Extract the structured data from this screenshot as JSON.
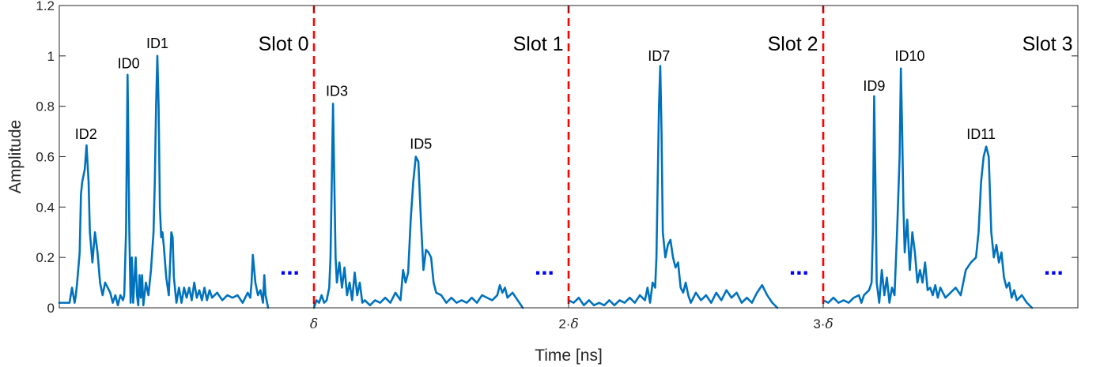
{
  "chart_data": {
    "type": "line",
    "title": "",
    "xlabel": "Time [ns]",
    "ylabel": "Amplitude",
    "xlim": [
      0,
      4
    ],
    "ylim": [
      0,
      1.2
    ],
    "y_ticks": [
      0,
      0.2,
      0.4,
      0.6,
      0.8,
      1,
      1.2
    ],
    "y_tick_labels": [
      "0",
      "0.2",
      "0.4",
      "0.6",
      "0.8",
      "1",
      "1.2"
    ],
    "x_ticks": [
      {
        "x": 1,
        "label": "δ",
        "prefix": ""
      },
      {
        "x": 2,
        "label": "δ",
        "prefix": "2·"
      },
      {
        "x": 3,
        "label": "δ",
        "prefix": "3·"
      }
    ],
    "grid": false,
    "line_color": "#0072bd",
    "slot_boundary_color": "#ff0000",
    "ellipsis_color": "#0000ff",
    "slot_boundaries": [
      1,
      2,
      3
    ],
    "slot_labels": [
      {
        "text": "Slot 0",
        "x": 0.98,
        "y": 1.05
      },
      {
        "text": "Slot 1",
        "x": 1.98,
        "y": 1.05
      },
      {
        "text": "Slot 2",
        "x": 2.98,
        "y": 1.05
      },
      {
        "text": "Slot 3",
        "x": 3.98,
        "y": 1.05
      }
    ],
    "ellipses": [
      {
        "text": "...",
        "x": 0.905,
        "y": 0.15
      },
      {
        "text": "...",
        "x": 1.905,
        "y": 0.15
      },
      {
        "text": "...",
        "x": 2.905,
        "y": 0.15
      },
      {
        "text": "...",
        "x": 3.905,
        "y": 0.15
      }
    ],
    "peak_labels": [
      {
        "text": "ID2",
        "x": 0.105,
        "y": 0.69
      },
      {
        "text": "ID0",
        "x": 0.272,
        "y": 0.97
      },
      {
        "text": "ID1",
        "x": 0.385,
        "y": 1.05
      },
      {
        "text": "ID3",
        "x": 1.09,
        "y": 0.86
      },
      {
        "text": "ID5",
        "x": 1.42,
        "y": 0.65
      },
      {
        "text": "ID7",
        "x": 2.355,
        "y": 1.0
      },
      {
        "text": "ID9",
        "x": 3.2,
        "y": 0.88
      },
      {
        "text": "ID10",
        "x": 3.34,
        "y": 1.0
      },
      {
        "text": "ID11",
        "x": 3.62,
        "y": 0.69
      }
    ],
    "segments": [
      {
        "x": [
          0,
          0.02,
          0.04,
          0.05,
          0.06,
          0.065,
          0.07,
          0.08,
          0.085,
          0.09,
          0.1,
          0.107,
          0.115,
          0.12,
          0.13,
          0.14,
          0.15,
          0.16,
          0.17,
          0.18,
          0.19,
          0.2,
          0.21,
          0.22,
          0.23,
          0.24,
          0.25,
          0.255,
          0.262,
          0.268,
          0.275,
          0.28,
          0.285,
          0.29,
          0.3,
          0.305,
          0.31,
          0.315,
          0.32,
          0.325,
          0.33,
          0.34,
          0.35,
          0.36,
          0.37,
          0.375,
          0.38,
          0.385,
          0.39,
          0.395,
          0.4,
          0.405,
          0.41,
          0.42,
          0.43,
          0.44,
          0.445,
          0.45,
          0.46,
          0.47,
          0.48,
          0.49,
          0.5,
          0.51,
          0.52,
          0.53,
          0.54,
          0.55,
          0.56,
          0.57,
          0.58,
          0.59,
          0.6,
          0.62,
          0.64,
          0.66,
          0.68,
          0.7,
          0.72,
          0.74,
          0.75,
          0.755,
          0.76,
          0.77,
          0.78,
          0.79,
          0.8,
          0.805,
          0.81,
          0.82
        ],
        "y": [
          0.02,
          0.02,
          0.02,
          0.08,
          0.02,
          0.05,
          0.1,
          0.22,
          0.45,
          0.5,
          0.55,
          0.645,
          0.5,
          0.3,
          0.18,
          0.3,
          0.22,
          0.1,
          0.05,
          0.1,
          0.08,
          0.06,
          0.02,
          0.05,
          0.01,
          0.05,
          0.03,
          0.05,
          0.3,
          0.925,
          0.3,
          0.02,
          0.2,
          0.02,
          0.2,
          0.05,
          0.01,
          0.13,
          0.04,
          0.13,
          0.01,
          0.1,
          0.05,
          0.15,
          0.3,
          0.5,
          0.8,
          1.0,
          0.8,
          0.4,
          0.28,
          0.3,
          0.25,
          0.12,
          0.05,
          0.3,
          0.28,
          0.12,
          0.02,
          0.08,
          0.02,
          0.08,
          0.04,
          0.08,
          0.03,
          0.1,
          0.04,
          0.07,
          0.03,
          0.08,
          0.03,
          0.07,
          0.04,
          0.06,
          0.03,
          0.05,
          0.04,
          0.05,
          0.02,
          0.06,
          0.04,
          0.1,
          0.21,
          0.1,
          0.05,
          0.07,
          0.02,
          0.13,
          0.05,
          0.0
        ]
      },
      {
        "x": [
          1.0,
          1.01,
          1.02,
          1.03,
          1.04,
          1.05,
          1.06,
          1.065,
          1.07,
          1.075,
          1.08,
          1.085,
          1.09,
          1.1,
          1.11,
          1.12,
          1.13,
          1.14,
          1.15,
          1.16,
          1.17,
          1.18,
          1.19,
          1.2,
          1.22,
          1.24,
          1.26,
          1.28,
          1.3,
          1.32,
          1.34,
          1.35,
          1.36,
          1.37,
          1.38,
          1.39,
          1.4,
          1.41,
          1.42,
          1.43,
          1.44,
          1.45,
          1.46,
          1.47,
          1.48,
          1.5,
          1.52,
          1.54,
          1.56,
          1.58,
          1.6,
          1.62,
          1.64,
          1.66,
          1.68,
          1.7,
          1.72,
          1.73,
          1.74,
          1.75,
          1.76,
          1.78,
          1.8,
          1.82
        ],
        "y": [
          0.0,
          0.03,
          0.02,
          0.05,
          0.02,
          0.03,
          0.08,
          0.2,
          0.5,
          0.81,
          0.5,
          0.2,
          0.1,
          0.18,
          0.08,
          0.16,
          0.05,
          0.1,
          0.03,
          0.14,
          0.05,
          0.1,
          0.02,
          0.03,
          0.01,
          0.03,
          0.02,
          0.04,
          0.02,
          0.06,
          0.03,
          0.15,
          0.1,
          0.14,
          0.35,
          0.5,
          0.6,
          0.58,
          0.35,
          0.15,
          0.23,
          0.22,
          0.2,
          0.1,
          0.06,
          0.05,
          0.02,
          0.04,
          0.02,
          0.03,
          0.02,
          0.04,
          0.02,
          0.05,
          0.04,
          0.03,
          0.05,
          0.09,
          0.06,
          0.08,
          0.04,
          0.06,
          0.03,
          0.0
        ]
      },
      {
        "x": [
          2.0,
          2.02,
          2.04,
          2.06,
          2.08,
          2.1,
          2.12,
          2.14,
          2.16,
          2.18,
          2.2,
          2.22,
          2.24,
          2.26,
          2.28,
          2.3,
          2.31,
          2.32,
          2.33,
          2.34,
          2.345,
          2.35,
          2.355,
          2.36,
          2.365,
          2.37,
          2.38,
          2.39,
          2.4,
          2.41,
          2.42,
          2.43,
          2.44,
          2.45,
          2.46,
          2.47,
          2.48,
          2.5,
          2.52,
          2.54,
          2.56,
          2.58,
          2.6,
          2.62,
          2.64,
          2.66,
          2.68,
          2.7,
          2.72,
          2.74,
          2.76,
          2.78,
          2.8,
          2.82
        ],
        "y": [
          0.03,
          0.02,
          0.04,
          0.01,
          0.03,
          0.01,
          0.02,
          0.01,
          0.03,
          0.01,
          0.03,
          0.02,
          0.04,
          0.02,
          0.05,
          0.03,
          0.08,
          0.02,
          0.1,
          0.08,
          0.2,
          0.5,
          0.8,
          0.96,
          0.7,
          0.3,
          0.2,
          0.25,
          0.27,
          0.2,
          0.16,
          0.18,
          0.08,
          0.06,
          0.1,
          0.05,
          0.02,
          0.06,
          0.03,
          0.05,
          0.02,
          0.06,
          0.03,
          0.07,
          0.04,
          0.06,
          0.02,
          0.04,
          0.02,
          0.06,
          0.09,
          0.05,
          0.02,
          0.0
        ]
      },
      {
        "x": [
          3.0,
          3.02,
          3.04,
          3.06,
          3.08,
          3.1,
          3.12,
          3.14,
          3.15,
          3.16,
          3.17,
          3.18,
          3.19,
          3.195,
          3.2,
          3.205,
          3.21,
          3.22,
          3.23,
          3.24,
          3.25,
          3.26,
          3.27,
          3.28,
          3.29,
          3.3,
          3.305,
          3.31,
          3.315,
          3.32,
          3.33,
          3.34,
          3.35,
          3.36,
          3.37,
          3.38,
          3.39,
          3.4,
          3.41,
          3.42,
          3.43,
          3.44,
          3.45,
          3.46,
          3.48,
          3.5,
          3.52,
          3.54,
          3.56,
          3.58,
          3.6,
          3.61,
          3.62,
          3.63,
          3.64,
          3.65,
          3.66,
          3.67,
          3.68,
          3.69,
          3.7,
          3.71,
          3.72,
          3.73,
          3.74,
          3.75,
          3.76,
          3.78,
          3.8,
          3.82
        ],
        "y": [
          0.03,
          0.02,
          0.04,
          0.02,
          0.03,
          0.02,
          0.04,
          0.05,
          0.02,
          0.05,
          0.06,
          0.07,
          0.1,
          0.3,
          0.84,
          0.5,
          0.1,
          0.02,
          0.15,
          0.05,
          0.12,
          0.02,
          0.08,
          0.05,
          0.3,
          0.6,
          0.95,
          0.7,
          0.4,
          0.22,
          0.35,
          0.15,
          0.3,
          0.22,
          0.1,
          0.15,
          0.1,
          0.18,
          0.07,
          0.08,
          0.05,
          0.09,
          0.04,
          0.08,
          0.04,
          0.06,
          0.08,
          0.05,
          0.15,
          0.18,
          0.2,
          0.3,
          0.5,
          0.6,
          0.64,
          0.6,
          0.3,
          0.2,
          0.25,
          0.18,
          0.22,
          0.12,
          0.08,
          0.1,
          0.04,
          0.07,
          0.03,
          0.05,
          0.02,
          0.0
        ]
      }
    ]
  }
}
